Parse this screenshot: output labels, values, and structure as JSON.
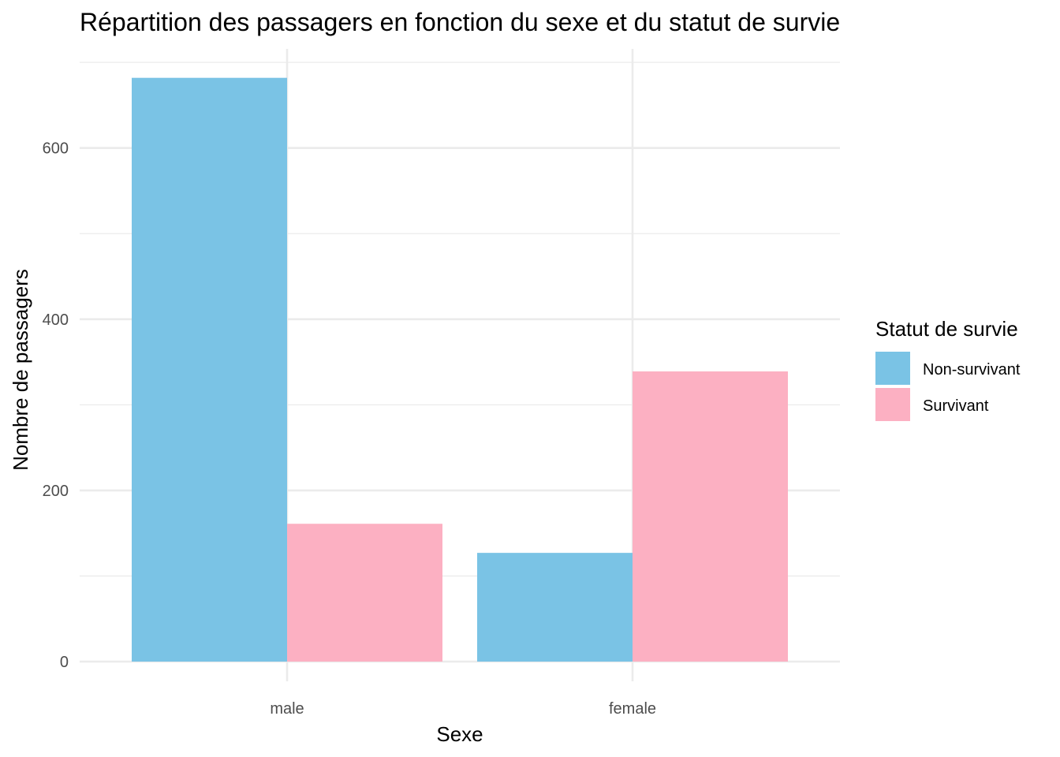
{
  "chart_data": {
    "type": "bar",
    "title": "Répartition des passagers en fonction du sexe et du statut de survie",
    "xlabel": "Sexe",
    "ylabel": "Nombre de passagers",
    "categories": [
      "male",
      "female"
    ],
    "series": [
      {
        "name": "Non-survivant",
        "values": [
          682,
          127
        ],
        "color": "#7AC3E5"
      },
      {
        "name": "Survivant",
        "values": [
          161,
          339
        ],
        "color": "#FCB0C2"
      }
    ],
    "ylim": [
      0,
      700
    ],
    "yticks": [
      0,
      200,
      400,
      600
    ],
    "grid": true,
    "legend": {
      "title": "Statut de survie",
      "position": "right"
    }
  }
}
